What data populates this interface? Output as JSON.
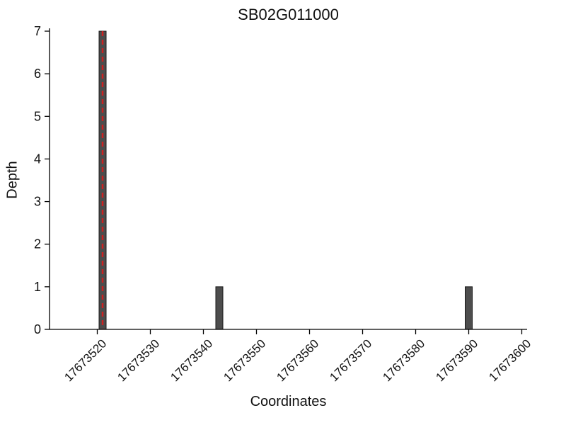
{
  "chart_data": {
    "type": "bar",
    "title": "SB02G011000",
    "xlabel": "Coordinates",
    "ylabel": "Depth",
    "xlim": [
      17673511,
      17673601
    ],
    "ylim": [
      0,
      7
    ],
    "xticks": [
      17673520,
      17673530,
      17673540,
      17673550,
      17673560,
      17673570,
      17673580,
      17673590,
      17673600
    ],
    "yticks": [
      0,
      1,
      2,
      3,
      4,
      5,
      6,
      7
    ],
    "bars": [
      {
        "x": 17673521,
        "depth": 7
      },
      {
        "x": 17673543,
        "depth": 1
      },
      {
        "x": 17673590,
        "depth": 1
      }
    ],
    "marker": {
      "x": 17673521,
      "style": "dashed",
      "color": "#cc2222"
    },
    "colors": {
      "bar_fill": "#4d4d4d",
      "bar_edge": "#1a1a1a",
      "axis": "#000000"
    },
    "legend": null,
    "grid": false
  }
}
